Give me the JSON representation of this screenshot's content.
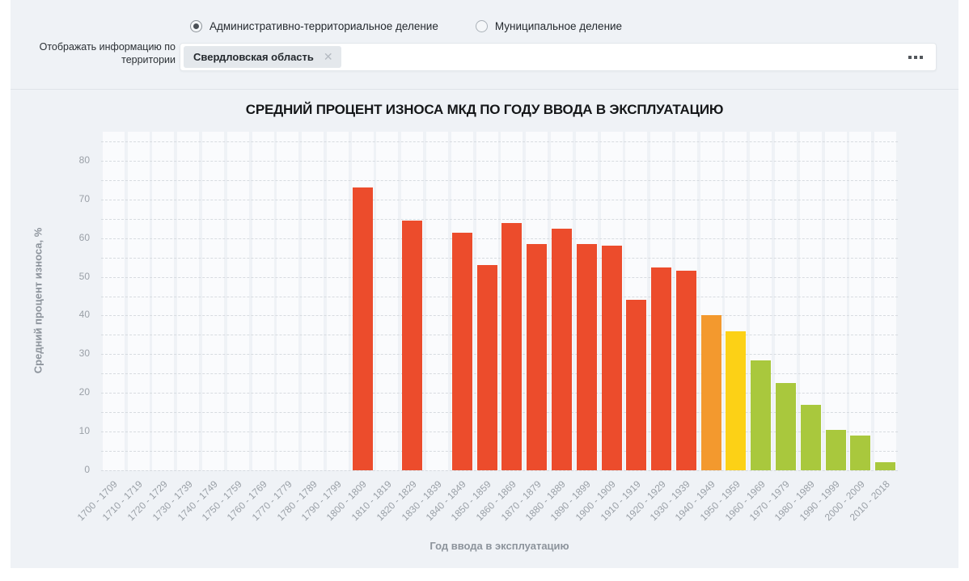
{
  "filters": {
    "division_radios": [
      {
        "label": "Административно-территориальное деление",
        "selected": true
      },
      {
        "label": "Муниципальное деление",
        "selected": false
      }
    ],
    "territory_label": "Отображать информацию по территории",
    "territory_tag": "Свердловская область",
    "remove_tag_icon": "✕",
    "more_options_icon": "ellipsis-squares"
  },
  "chart_data": {
    "type": "bar",
    "title": "СРЕДНИЙ ПРОЦЕНТ ИЗНОСА МКД ПО ГОДУ ВВОДА В ЭКСПЛУАТАЦИЮ",
    "xlabel": "Год ввода в эксплуатацию",
    "ylabel": "Средний процент износа, %",
    "ylim": [
      0,
      87.5
    ],
    "yticks": [
      0,
      10,
      20,
      30,
      40,
      50,
      60,
      70,
      80
    ],
    "grid_interval": 5,
    "grid_max": 85,
    "grid_on": true,
    "legend": "none",
    "categories": [
      "1700 - 1709",
      "1710 - 1719",
      "1720 - 1729",
      "1730 - 1739",
      "1740 - 1749",
      "1750 - 1759",
      "1760 - 1769",
      "1770 - 1779",
      "1780 - 1789",
      "1790 - 1799",
      "1800 - 1809",
      "1810 - 1819",
      "1820 - 1829",
      "1830 - 1839",
      "1840 - 1849",
      "1850 - 1859",
      "1860 - 1869",
      "1870 - 1879",
      "1880 - 1889",
      "1890 - 1899",
      "1900 - 1909",
      "1910 - 1919",
      "1920 - 1929",
      "1930 - 1939",
      "1940 - 1949",
      "1950 - 1959",
      "1960 - 1969",
      "1970 - 1979",
      "1980 - 1989",
      "1990 - 1999",
      "2000 - 2009",
      "2010 - 2018"
    ],
    "values": [
      null,
      null,
      null,
      null,
      null,
      null,
      null,
      null,
      null,
      null,
      73,
      null,
      64.5,
      null,
      61.5,
      53,
      64,
      58.5,
      62.5,
      58.5,
      58,
      44,
      52.5,
      51.5,
      40,
      36,
      28.5,
      22.5,
      17,
      10.5,
      9,
      2
    ],
    "colors": [
      null,
      null,
      null,
      null,
      null,
      null,
      null,
      null,
      null,
      null,
      "#ec4c2c",
      null,
      "#ec4c2c",
      null,
      "#ec4c2c",
      "#ec4c2c",
      "#ec4c2c",
      "#ec4c2c",
      "#ec4c2c",
      "#ec4c2c",
      "#ec4c2c",
      "#ec4c2c",
      "#ec4c2c",
      "#ec4c2c",
      "#f3992e",
      "#fcd116",
      "#a9c83d",
      "#a9c83d",
      "#a9c83d",
      "#a9c83d",
      "#a9c83d",
      "#a9c83d"
    ],
    "palette": {
      "high_wear": "#ec4c2c",
      "medium_high_wear": "#f3992e",
      "medium_wear": "#fcd116",
      "low_wear": "#a9c83d"
    }
  }
}
